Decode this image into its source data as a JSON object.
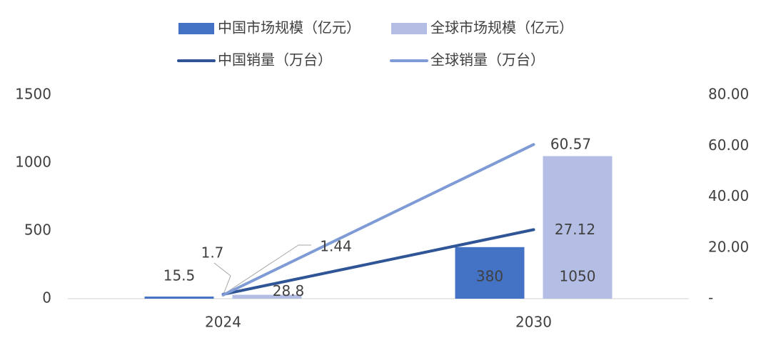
{
  "chart_data": {
    "type": "combo",
    "categories": [
      "2024",
      "2030"
    ],
    "series": [
      {
        "name": "中国市场规模（亿元）",
        "type": "bar",
        "color": "#4472c4",
        "values": [
          15.5,
          380
        ]
      },
      {
        "name": "全球市场规模（亿元）",
        "type": "bar",
        "color": "#b4bde3",
        "values": [
          28.8,
          1050
        ]
      },
      {
        "name": "中国销量（万台）",
        "type": "line",
        "axis": "y2",
        "color": "#2f5597",
        "values": [
          1.7,
          27.12
        ]
      },
      {
        "name": "全球销量（万台）",
        "type": "line",
        "axis": "y2",
        "color": "#7f9bd5",
        "values": [
          1.44,
          60.57
        ]
      }
    ],
    "ylim": [
      0,
      1500
    ],
    "yticks": [
      0,
      500,
      1000,
      1500
    ],
    "y2lim": [
      0,
      80
    ],
    "y2ticks": [
      {
        "value": 0,
        "label": "-"
      },
      {
        "value": 20,
        "label": "20.00"
      },
      {
        "value": 40,
        "label": "40.00"
      },
      {
        "value": 60,
        "label": "60.00"
      },
      {
        "value": 80,
        "label": "80.00"
      }
    ],
    "grid": false
  }
}
